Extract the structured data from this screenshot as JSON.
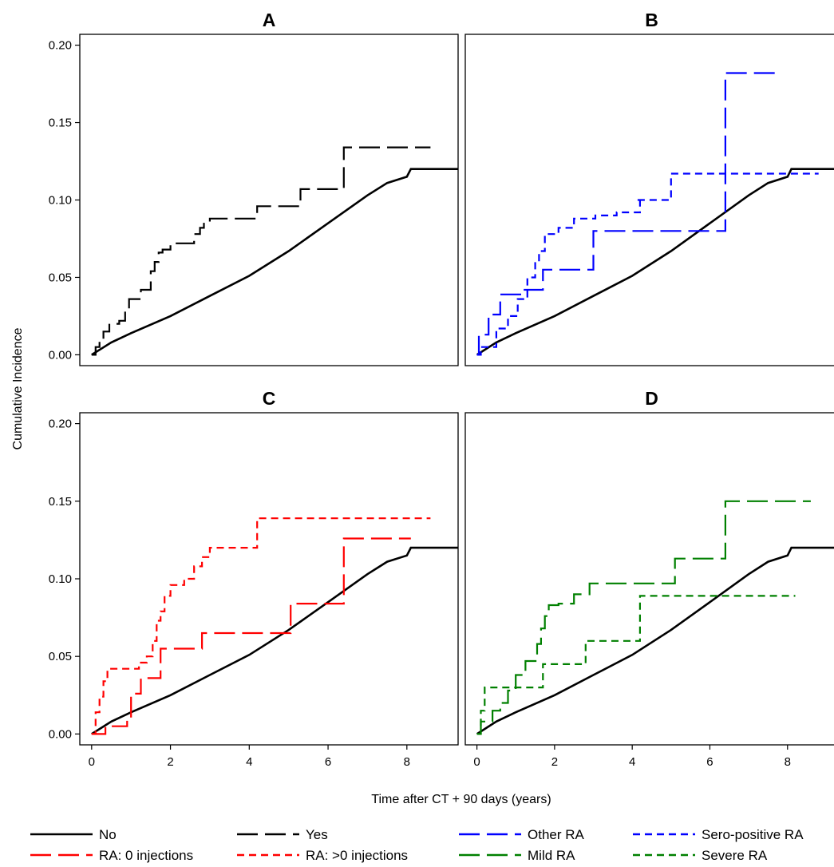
{
  "chart_data": {
    "type": "line",
    "layout": "2x2 panels",
    "ylabel": "Cumulative Incidence",
    "xlabel": "Time after CT + 90 days (years)",
    "xlim": [
      -0.3,
      9.3
    ],
    "ylim": [
      -0.007,
      0.207
    ],
    "xticks": [
      0,
      2,
      4,
      6,
      8
    ],
    "yticks": [
      0.0,
      0.05,
      0.1,
      0.15,
      0.2
    ],
    "ytick_labels": [
      "0.00",
      "0.05",
      "0.10",
      "0.15",
      "0.20"
    ],
    "grid": false,
    "legend_position": "bottom",
    "legend": [
      {
        "label": "No",
        "color": "#000000",
        "dash": "solid"
      },
      {
        "label": "Yes",
        "color": "#000000",
        "dash": "long-dash"
      },
      {
        "label": "Other RA",
        "color": "#0000ff",
        "dash": "long-dash"
      },
      {
        "label": "Sero-positive RA",
        "color": "#0000ff",
        "dash": "short-dash"
      },
      {
        "label": "RA: 0 injections",
        "color": "#ff0000",
        "dash": "long-dash"
      },
      {
        "label": "RA: >0 injections",
        "color": "#ff0000",
        "dash": "short-dash"
      },
      {
        "label": "Mild RA",
        "color": "#008000",
        "dash": "long-dash"
      },
      {
        "label": "Severe RA",
        "color": "#008000",
        "dash": "short-dash"
      }
    ],
    "reference_curve": {
      "name": "No",
      "color": "#000000",
      "dash": "solid",
      "x": [
        0,
        0.5,
        1,
        2,
        3,
        4,
        5,
        6,
        7,
        7.5,
        8,
        8.1,
        9.3
      ],
      "y": [
        0.0,
        0.008,
        0.014,
        0.025,
        0.038,
        0.051,
        0.067,
        0.085,
        0.103,
        0.111,
        0.115,
        0.12,
        0.12
      ]
    },
    "panels": [
      {
        "title": "A",
        "series": [
          {
            "name": "Yes",
            "color": "#000000",
            "dash": "long-dash",
            "x": [
              0,
              0.1,
              0.2,
              0.3,
              0.45,
              0.7,
              0.85,
              0.95,
              1.25,
              1.5,
              1.6,
              1.7,
              1.8,
              2.0,
              2.6,
              2.75,
              2.85,
              3.0,
              3.4,
              4.2,
              5.0,
              5.3,
              6.4,
              8.6
            ],
            "y": [
              0.0,
              0.005,
              0.01,
              0.015,
              0.02,
              0.022,
              0.028,
              0.036,
              0.042,
              0.054,
              0.06,
              0.066,
              0.068,
              0.072,
              0.078,
              0.082,
              0.086,
              0.088,
              0.088,
              0.096,
              0.096,
              0.107,
              0.134,
              0.134
            ]
          }
        ]
      },
      {
        "title": "B",
        "series": [
          {
            "name": "Other RA",
            "color": "#0000ff",
            "dash": "long-dash",
            "x": [
              0,
              0.05,
              0.3,
              0.6,
              1.15,
              1.7,
              3.0,
              6.4,
              7.8
            ],
            "y": [
              0.0,
              0.013,
              0.026,
              0.039,
              0.042,
              0.055,
              0.08,
              0.182,
              0.182
            ]
          },
          {
            "name": "Sero-positive RA",
            "color": "#0000ff",
            "dash": "short-dash",
            "x": [
              0,
              0.1,
              0.5,
              0.8,
              1.05,
              1.3,
              1.5,
              1.6,
              1.75,
              2.1,
              2.5,
              3.05,
              3.6,
              4.2,
              4.1,
              5.0,
              8.8
            ],
            "y": [
              0.0,
              0.005,
              0.017,
              0.025,
              0.036,
              0.05,
              0.06,
              0.067,
              0.078,
              0.082,
              0.088,
              0.09,
              0.092,
              0.1,
              0.1,
              0.117,
              0.117
            ]
          }
        ]
      },
      {
        "title": "C",
        "series": [
          {
            "name": "RA: 0 injections",
            "color": "#ff0000",
            "dash": "long-dash",
            "x": [
              0,
              0.35,
              0.9,
              1.0,
              1.25,
              1.75,
              2.8,
              5.05,
              6.4,
              8.1
            ],
            "y": [
              0.0,
              0.005,
              0.01,
              0.026,
              0.036,
              0.055,
              0.065,
              0.084,
              0.126,
              0.126
            ]
          },
          {
            "name": "RA: >0 injections",
            "color": "#ff0000",
            "dash": "short-dash",
            "x": [
              0,
              0.1,
              0.2,
              0.3,
              0.4,
              1.2,
              1.4,
              1.55,
              1.65,
              1.75,
              1.85,
              2.0,
              2.35,
              2.6,
              2.8,
              3.0,
              4.2,
              8.6
            ],
            "y": [
              0.0,
              0.014,
              0.024,
              0.034,
              0.042,
              0.046,
              0.05,
              0.06,
              0.073,
              0.079,
              0.089,
              0.096,
              0.1,
              0.108,
              0.114,
              0.12,
              0.139,
              0.139
            ]
          }
        ]
      },
      {
        "title": "D",
        "series": [
          {
            "name": "Mild RA",
            "color": "#008000",
            "dash": "long-dash",
            "x": [
              0,
              0.1,
              0.4,
              0.6,
              0.8,
              1.0,
              1.25,
              1.55,
              1.65,
              1.75,
              1.85,
              2.1,
              2.5,
              2.9,
              5.1,
              6.4,
              8.6
            ],
            "y": [
              0.0,
              0.008,
              0.015,
              0.02,
              0.028,
              0.038,
              0.047,
              0.058,
              0.068,
              0.076,
              0.083,
              0.084,
              0.09,
              0.097,
              0.113,
              0.15,
              0.15
            ]
          },
          {
            "name": "Severe RA",
            "color": "#008000",
            "dash": "short-dash",
            "x": [
              0,
              0.1,
              0.2,
              0.9,
              1.7,
              2.8,
              4.2,
              8.2
            ],
            "y": [
              0.0,
              0.015,
              0.03,
              0.03,
              0.045,
              0.06,
              0.089,
              0.089
            ]
          }
        ]
      }
    ]
  }
}
